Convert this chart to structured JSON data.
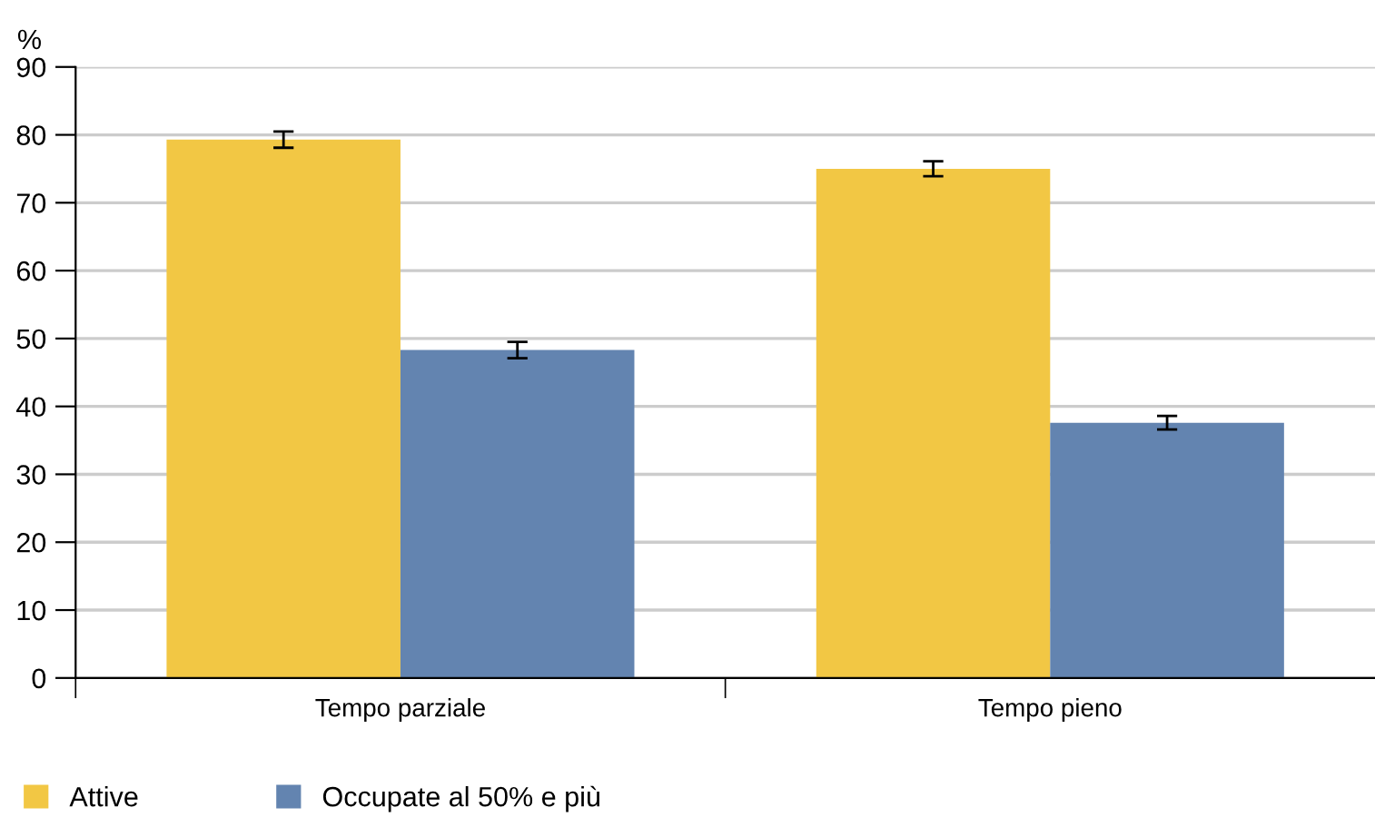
{
  "chart_data": {
    "type": "bar",
    "ylabel": "%",
    "categories": [
      "Tempo parziale",
      "Tempo pieno"
    ],
    "series": [
      {
        "name": "Attive",
        "color": "#f2c744",
        "values": [
          79.3,
          75.0
        ],
        "errors": [
          1.2,
          1.1
        ]
      },
      {
        "name": "Occupate al 50% e più",
        "color": "#6384b0",
        "values": [
          48.3,
          37.6
        ],
        "errors": [
          1.2,
          1.0
        ]
      }
    ],
    "ylim": [
      0,
      90
    ],
    "yticks": [
      0,
      10,
      20,
      30,
      40,
      50,
      60,
      70,
      80,
      90
    ],
    "grid": "y",
    "legend": "bottom left"
  }
}
